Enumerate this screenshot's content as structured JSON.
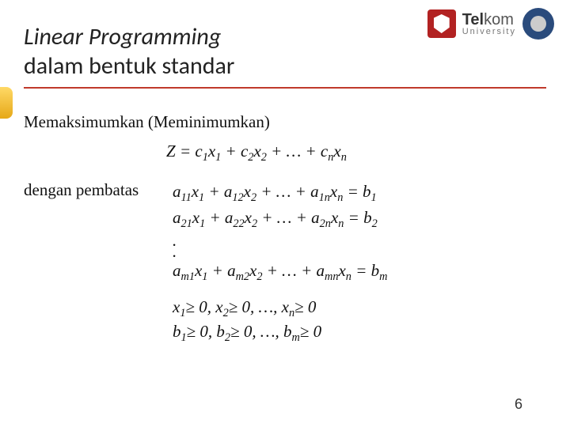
{
  "logo": {
    "brand_bold": "Tel",
    "brand_rest": "kom",
    "brand_sub": "University"
  },
  "title": {
    "line1_italic": "Linear Programming",
    "line2": "dalam bentuk standar"
  },
  "content": {
    "maximize_label": "Memaksimumkan (Meminimumkan)",
    "subject_to_label": "dengan pembatas"
  },
  "page_number": "6",
  "colors": {
    "accent_red": "#c0392b",
    "accent_yellow": "#f5b942"
  }
}
